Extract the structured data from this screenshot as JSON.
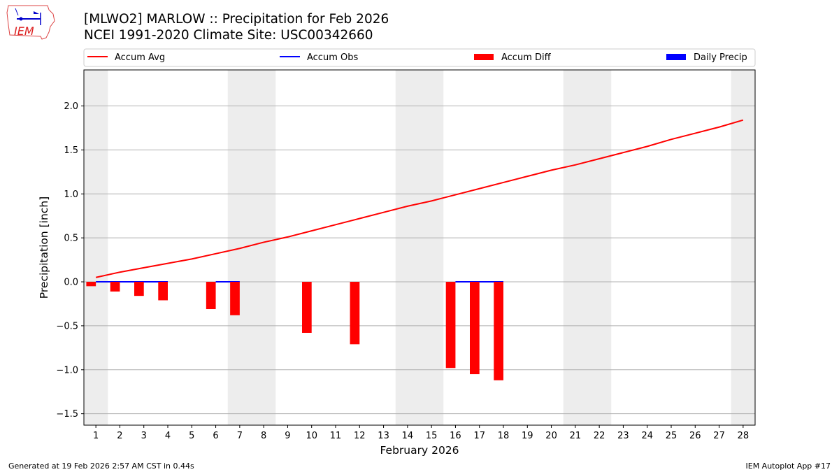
{
  "header": {
    "title_line1": "[MLWO2] MARLOW :: Precipitation for Feb 2026",
    "title_line2": "NCEI 1991-2020 Climate Site: USC00342660",
    "logo_text": "IEM"
  },
  "footer": {
    "left": "Generated at 19 Feb 2026 2:57 AM CST in 0.44s",
    "right": "IEM Autoplot App #17"
  },
  "chart_data": {
    "type": "bar",
    "xlabel": "February 2026",
    "ylabel": "Precipitation [inch]",
    "xlim": [
      0.5,
      28.5
    ],
    "ylim": [
      -1.63,
      2.41
    ],
    "yticks": [
      -1.5,
      -1.0,
      -0.5,
      0.0,
      0.5,
      1.0,
      1.5,
      2.0
    ],
    "ytick_labels": [
      "−1.5",
      "−1.0",
      "−0.5",
      "0.0",
      "0.5",
      "1.0",
      "1.5",
      "2.0"
    ],
    "x": [
      1,
      2,
      3,
      4,
      5,
      6,
      7,
      8,
      9,
      10,
      11,
      12,
      13,
      14,
      15,
      16,
      17,
      18,
      19,
      20,
      21,
      22,
      23,
      24,
      25,
      26,
      27,
      28
    ],
    "grid": "y",
    "legend_position": "top",
    "weekend_shading": [
      [
        0.5,
        1.5
      ],
      [
        6.5,
        8.5
      ],
      [
        13.5,
        15.5
      ],
      [
        20.5,
        22.5
      ],
      [
        27.5,
        28.5
      ]
    ],
    "shade_color": "#ededed",
    "series": [
      {
        "name": "Accum Avg",
        "kind": "line",
        "color": "#ff0000",
        "values": [
          0.05,
          0.11,
          0.16,
          0.21,
          0.26,
          0.32,
          0.38,
          0.45,
          0.51,
          0.58,
          0.65,
          0.72,
          0.79,
          0.86,
          0.92,
          0.99,
          1.06,
          1.13,
          1.2,
          1.27,
          1.33,
          1.4,
          1.47,
          1.54,
          1.62,
          1.69,
          1.76,
          1.84
        ]
      },
      {
        "name": "Accum Obs",
        "kind": "line",
        "color": "#0000ff",
        "values": [
          0,
          0,
          0,
          0,
          null,
          0,
          0,
          null,
          null,
          null,
          null,
          null,
          null,
          null,
          null,
          0,
          0,
          0,
          null,
          null,
          null,
          null,
          null,
          null,
          null,
          null,
          null,
          null
        ]
      },
      {
        "name": "Accum Diff",
        "kind": "bar",
        "color": "#ff0000",
        "values": [
          -0.05,
          -0.11,
          -0.16,
          -0.21,
          null,
          -0.31,
          -0.38,
          null,
          null,
          -0.58,
          null,
          -0.71,
          null,
          null,
          null,
          -0.98,
          -1.05,
          -1.12,
          null,
          null,
          null,
          null,
          null,
          null,
          null,
          null,
          null,
          null
        ]
      },
      {
        "name": "Daily Precip",
        "kind": "bar",
        "color": "#0000ff",
        "values": [
          0,
          0,
          0,
          0,
          null,
          0,
          0,
          null,
          null,
          null,
          null,
          null,
          null,
          null,
          null,
          0,
          0,
          0,
          null,
          null,
          null,
          null,
          null,
          null,
          null,
          null,
          null,
          null
        ]
      }
    ]
  }
}
